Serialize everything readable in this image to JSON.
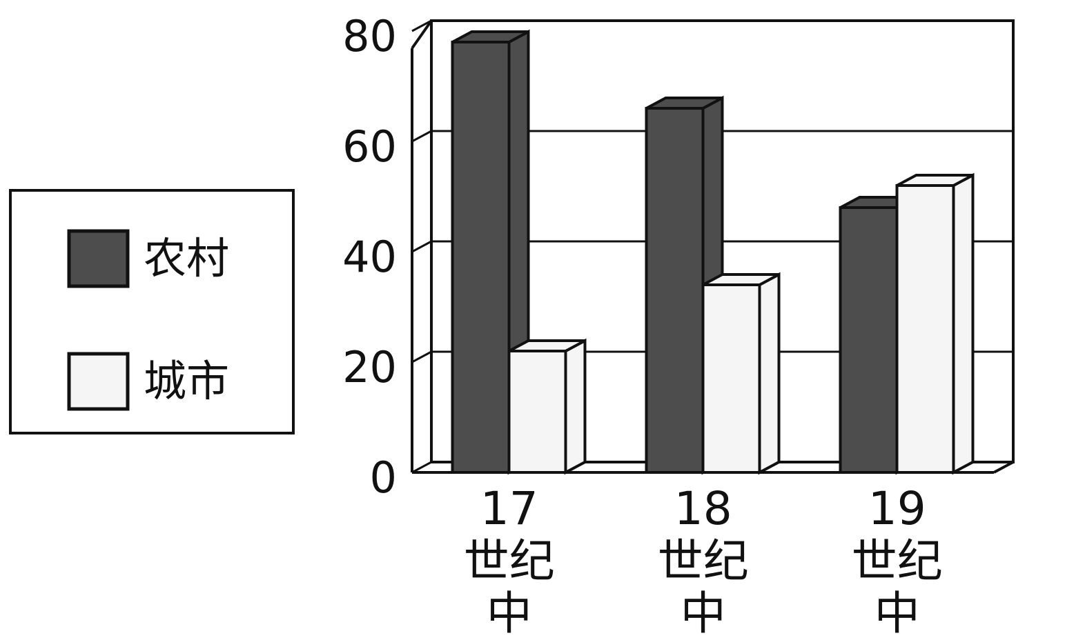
{
  "chart_data": {
    "type": "bar3d",
    "categories": [
      "17世纪中",
      "18世纪中",
      "19世纪中"
    ],
    "series": [
      {
        "name": "农村",
        "color": "#4d4d4d",
        "values": [
          78,
          66,
          48
        ]
      },
      {
        "name": "城市",
        "color": "#f5f5f5",
        "values": [
          22,
          34,
          52
        ]
      }
    ],
    "ylim": [
      0,
      80
    ],
    "yticks": [
      0,
      20,
      40,
      60,
      80
    ],
    "grid": true
  }
}
